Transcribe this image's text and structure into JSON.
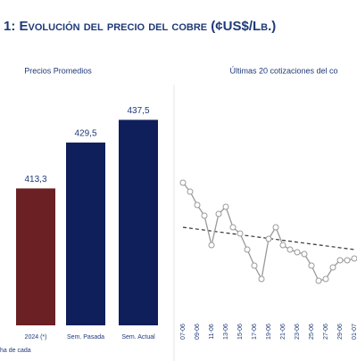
{
  "title": "1: Evolución del precio del cobre (¢US$/Lb.)",
  "footnote": "ha de cada",
  "chart_data": [
    {
      "type": "bar",
      "title": "Precios Promedios",
      "categories": [
        "2024 (*)",
        "Sem. Pasada",
        "Sem. Actual"
      ],
      "values": [
        413.3,
        429.5,
        437.5
      ],
      "value_labels": [
        "413,3",
        "429,5",
        "437,5"
      ],
      "colors": [
        "#6b2024",
        "#0e1f5b",
        "#0e1f5b"
      ],
      "ylim": [
        365,
        440
      ]
    },
    {
      "type": "line",
      "title": "Últimas 20 cotizaciones del co",
      "categories": [
        "07-06",
        null,
        "09-06",
        null,
        "11-06",
        null,
        "13-06",
        null,
        "15-06",
        null,
        "17-06",
        null,
        "19-06",
        null,
        "21-06",
        null,
        "23-06",
        null,
        "25-06",
        null,
        "27-06",
        null,
        "29-06",
        null,
        "01-07"
      ],
      "series": [
        {
          "color": "#9a9a9a",
          "values": [
            125,
            115,
            100,
            88,
            55,
            90,
            98,
            75,
            68,
            50,
            32,
            17,
            62,
            75,
            55,
            50,
            47,
            45,
            32,
            15,
            17,
            30,
            38,
            38,
            40
          ]
        }
      ],
      "trendline": [
        75,
        50
      ],
      "ylim": [
        0,
        150
      ]
    }
  ]
}
